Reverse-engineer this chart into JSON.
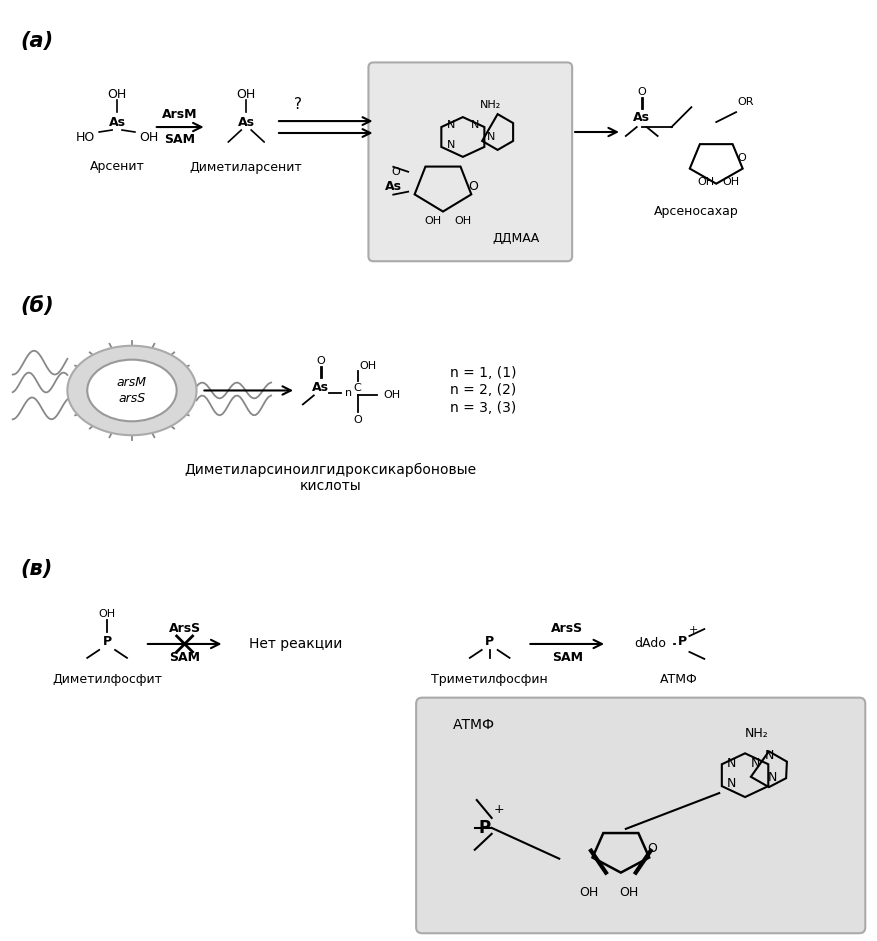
{
  "bg_color": "#ffffff",
  "panel_a_label": "(а)",
  "panel_b_label": "(б)",
  "panel_c_label": "(в)",
  "arsenite_label": "Арсенит",
  "dma_label": "Диметиларсенит",
  "ddmaa_label": "ДДМАА",
  "arsenosugar_label": "Арсеносахар",
  "arsm_label": "ArsM",
  "sam_label": "SAM",
  "question_mark": "?",
  "bacterium_label1": "arsM",
  "bacterium_label2": "arsS",
  "dmahca_label": "Диметиларсиноилгидроксикарбоновые\nкислоты",
  "n1_label": "n = 1, (1)",
  "n2_label": "n = 2, (2)",
  "n3_label": "n = 3, (3)",
  "dimethylphosphite_label": "Диметилфосфит",
  "trimethylphosphine_label": "Триметилфосфин",
  "atmpf_label": "АТМФ",
  "no_reaction_label": "Нет реакции",
  "arss_label": "ArsS",
  "sam2_label": "SAM",
  "dado_label": "dAdo",
  "atmpf_box_label": "АТМФ",
  "gray_box_color": "#d0d0d0",
  "light_gray": "#e0e0e0",
  "arrow_color": "#000000",
  "text_color": "#000000"
}
